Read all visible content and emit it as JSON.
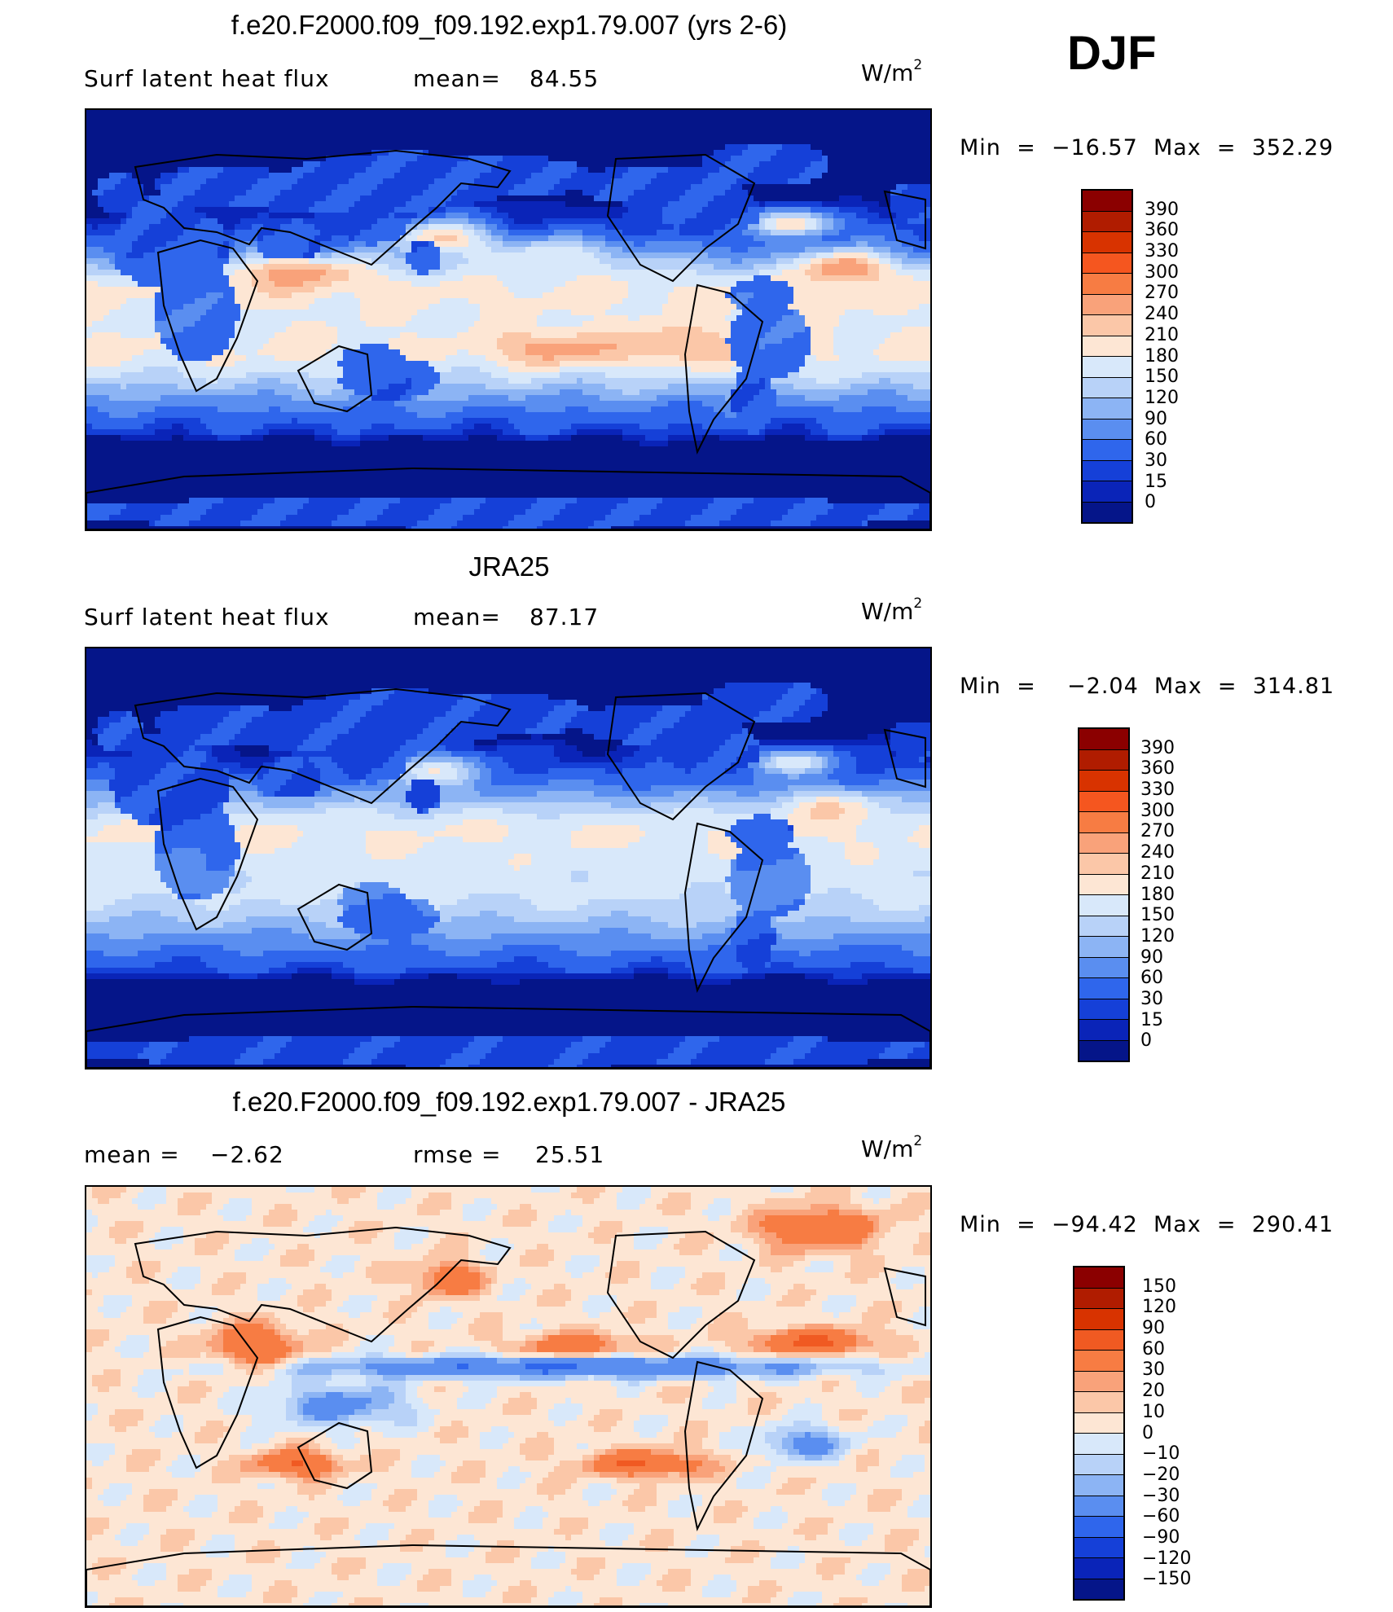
{
  "season_label": "DJF",
  "units": {
    "base": "W/m",
    "exp": "2"
  },
  "panels": [
    {
      "title": "f.e20.F2000.f09_f09.192.exp1.79.007 (yrs 2-6)",
      "variable": "Surf  latent  heat  flux",
      "stat_label": "mean=",
      "stat_value": "84.55",
      "minmax": "Min  =  −16.57  Max  =  352.29",
      "colorbar_levels": [
        "390",
        "360",
        "330",
        "300",
        "270",
        "240",
        "210",
        "180",
        "150",
        "120",
        "90",
        "60",
        "30",
        "15",
        "0"
      ],
      "colorbar_colors": [
        "#8b0000",
        "#b01c00",
        "#d83300",
        "#f5561f",
        "#f77c43",
        "#f9a27a",
        "#fbc7a8",
        "#fde6d4",
        "#d8e8fa",
        "#b8d2f8",
        "#8cb4f4",
        "#5a8ef0",
        "#2f66ec",
        "#1540d8",
        "#0a24b8",
        "#051589"
      ],
      "field": "model"
    },
    {
      "title": "JRA25",
      "variable": "Surf  latent  heat  flux",
      "stat_label": "mean=",
      "stat_value": "87.17",
      "minmax": "Min  =    −2.04  Max  =  314.81",
      "colorbar_levels": [
        "390",
        "360",
        "330",
        "300",
        "270",
        "240",
        "210",
        "180",
        "150",
        "120",
        "90",
        "60",
        "30",
        "15",
        "0"
      ],
      "colorbar_colors": [
        "#8b0000",
        "#b01c00",
        "#d83300",
        "#f5561f",
        "#f77c43",
        "#f9a27a",
        "#fbc7a8",
        "#fde6d4",
        "#d8e8fa",
        "#b8d2f8",
        "#8cb4f4",
        "#5a8ef0",
        "#2f66ec",
        "#1540d8",
        "#0a24b8",
        "#051589"
      ],
      "field": "obs"
    },
    {
      "title": "f.e20.F2000.f09_f09.192.exp1.79.007 - JRA25",
      "stat_label": "mean  =",
      "stat_value": "−2.62",
      "stat2_label": "rmse  =",
      "stat2_value": "25.51",
      "minmax": "Min  =  −94.42  Max  =  290.41",
      "colorbar_levels": [
        "150",
        "120",
        "90",
        "60",
        "30",
        "20",
        "10",
        "0",
        "−10",
        "−20",
        "−30",
        "−60",
        "−90",
        "−120",
        "−150"
      ],
      "colorbar_colors": [
        "#8b0000",
        "#b01c00",
        "#d83300",
        "#f05a22",
        "#f77c43",
        "#f9a27a",
        "#fbc7a8",
        "#fde6d4",
        "#d8e8fa",
        "#b8d2f8",
        "#8cb4f4",
        "#5a8ef0",
        "#2f66ec",
        "#1540d8",
        "#0a24b8",
        "#051589"
      ],
      "field": "diff"
    }
  ]
}
